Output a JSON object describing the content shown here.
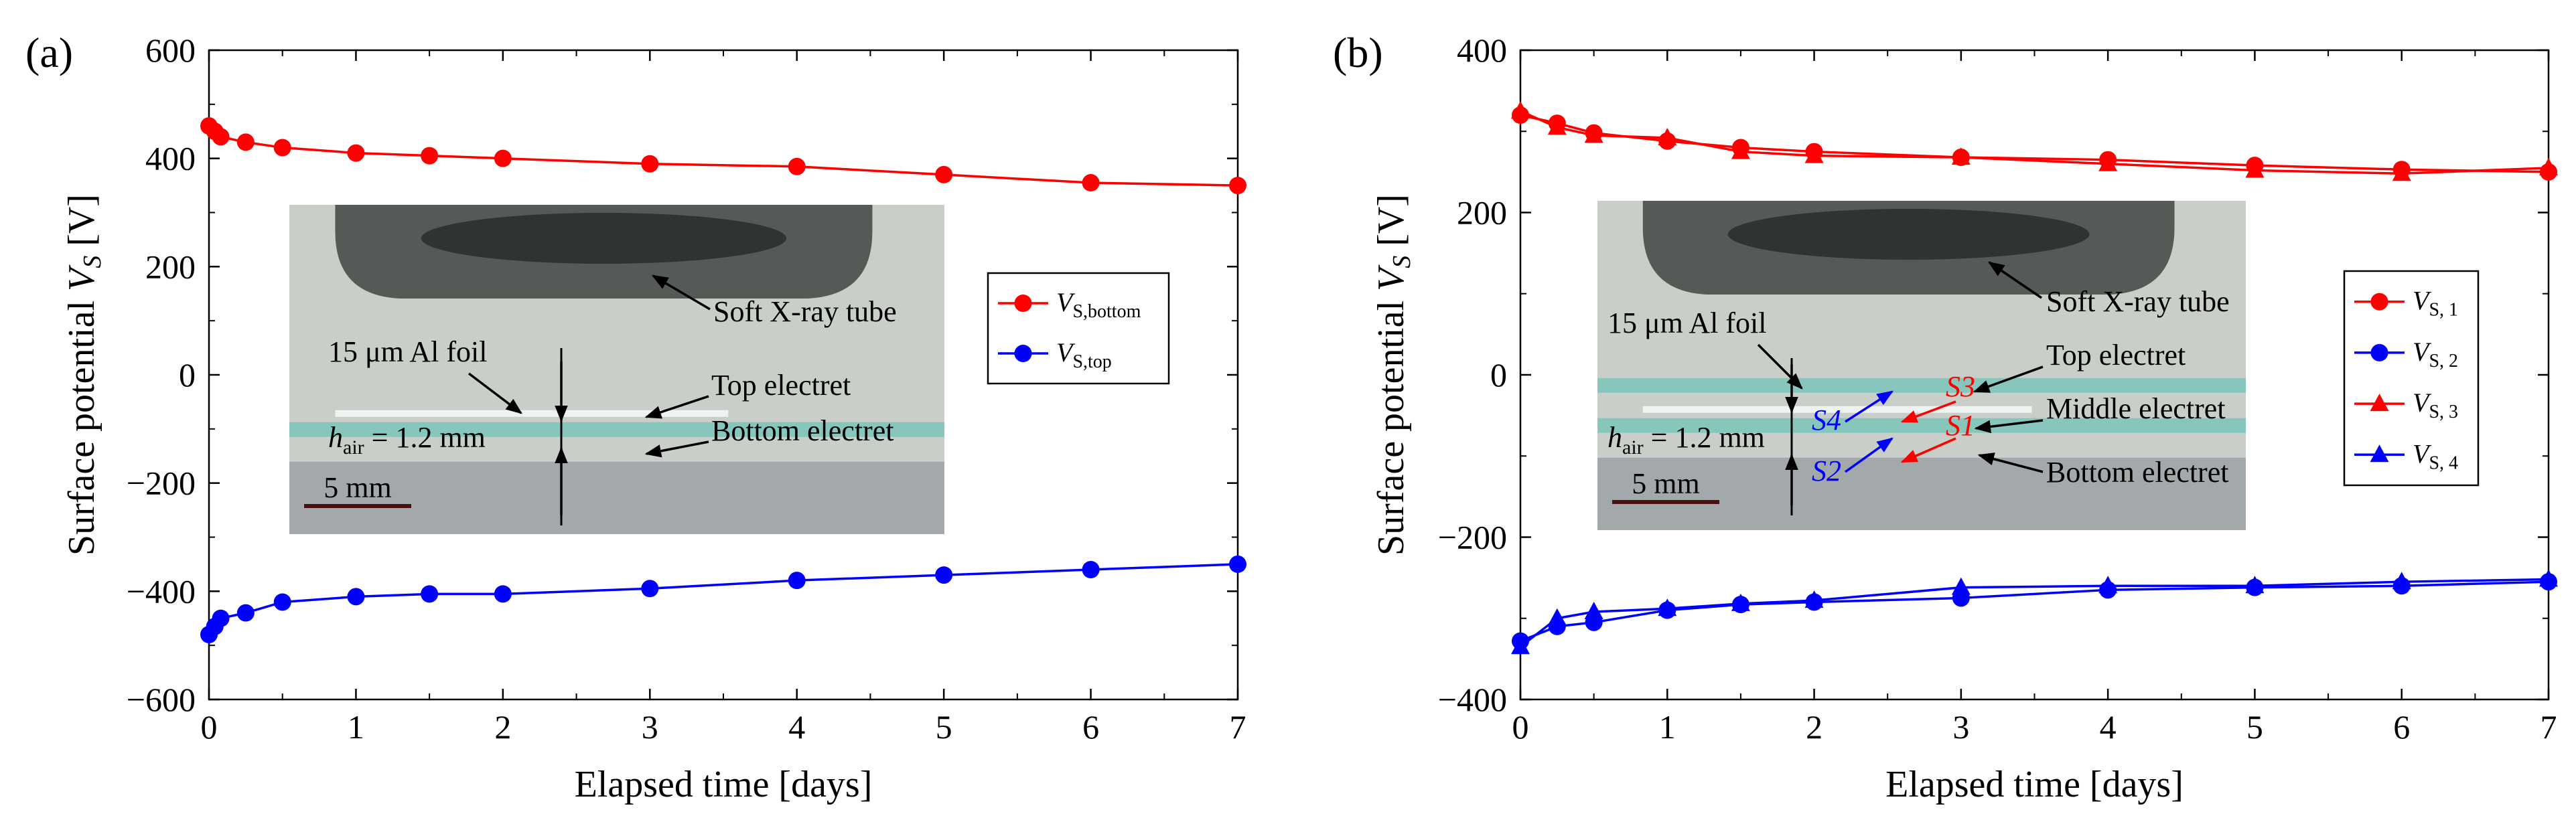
{
  "chart_data": [
    {
      "panel_label": "(a)",
      "type": "line",
      "xlabel": "Elapsed time [days]",
      "ylabel": "Surface potential",
      "ylabel_symbol": "V",
      "ylabel_sub": "S",
      "ylabel_unit": "[V]",
      "xlim": [
        0,
        7
      ],
      "ylim": [
        -600,
        600
      ],
      "xticks": [
        0,
        1,
        2,
        3,
        4,
        5,
        6,
        7
      ],
      "yticks": [
        600,
        400,
        200,
        0,
        -200,
        -400,
        -600
      ],
      "ytick_labels": [
        "600",
        "400",
        "200",
        "0",
        "−200",
        "−400",
        "−600"
      ],
      "series": [
        {
          "name": "V",
          "name_sub": "S,bottom",
          "color": "#ff0000",
          "marker": "circle",
          "x": [
            0,
            0.04,
            0.08,
            0.25,
            0.5,
            1,
            1.5,
            2,
            3,
            4,
            5,
            6,
            7
          ],
          "y": [
            460,
            450,
            440,
            430,
            420,
            410,
            405,
            400,
            390,
            385,
            370,
            355,
            350
          ]
        },
        {
          "name": "V",
          "name_sub": "S,top",
          "color": "#0000ff",
          "marker": "circle",
          "x": [
            0,
            0.04,
            0.08,
            0.25,
            0.5,
            1,
            1.5,
            2,
            3,
            4,
            5,
            6,
            7
          ],
          "y": [
            -480,
            -465,
            -450,
            -440,
            -420,
            -410,
            -405,
            -405,
            -395,
            -380,
            -370,
            -360,
            -350
          ]
        }
      ],
      "legend_position": "center-right",
      "inset": {
        "scale_bar": "5 mm",
        "labels": {
          "tube": "Soft X-ray tube",
          "foil": "15 μm Al foil",
          "top": "Top electret",
          "bottom": "Bottom electret",
          "hair_symbol": "h",
          "hair_sub": "air",
          "hair_value": " = 1.2 mm"
        }
      }
    },
    {
      "panel_label": "(b)",
      "type": "line",
      "xlabel": "Elapsed time [days]",
      "ylabel": "Surface potential",
      "ylabel_symbol": "V",
      "ylabel_sub": "S",
      "ylabel_unit": "[V]",
      "xlim": [
        0,
        7
      ],
      "ylim": [
        -400,
        400
      ],
      "xticks": [
        0,
        1,
        2,
        3,
        4,
        5,
        6,
        7
      ],
      "yticks": [
        400,
        200,
        0,
        -200,
        -400
      ],
      "ytick_labels": [
        "400",
        "200",
        "0",
        "−200",
        "−400"
      ],
      "series": [
        {
          "name": "V",
          "name_sub": "S, 1",
          "color": "#ff0000",
          "marker": "circle",
          "x": [
            0,
            0.25,
            0.5,
            1,
            1.5,
            2,
            3,
            4,
            5,
            6,
            7
          ],
          "y": [
            320,
            310,
            298,
            288,
            280,
            275,
            268,
            265,
            258,
            253,
            250
          ]
        },
        {
          "name": "V",
          "name_sub": "S, 2",
          "color": "#0000ff",
          "marker": "circle",
          "x": [
            0,
            0.25,
            0.5,
            1,
            1.5,
            2,
            3,
            4,
            5,
            6,
            7
          ],
          "y": [
            -328,
            -310,
            -305,
            -290,
            -283,
            -280,
            -275,
            -265,
            -262,
            -260,
            -255
          ]
        },
        {
          "name": "V",
          "name_sub": "S, 3",
          "color": "#ff0000",
          "marker": "triangle",
          "x": [
            0,
            0.25,
            0.5,
            1,
            1.5,
            2,
            3,
            4,
            5,
            6,
            7
          ],
          "y": [
            325,
            305,
            295,
            292,
            275,
            270,
            268,
            260,
            252,
            248,
            255
          ]
        },
        {
          "name": "V",
          "name_sub": "S, 4",
          "color": "#0000ff",
          "marker": "triangle",
          "x": [
            0,
            0.25,
            0.5,
            1,
            1.5,
            2,
            3,
            4,
            5,
            6,
            7
          ],
          "y": [
            -335,
            -300,
            -292,
            -288,
            -282,
            -278,
            -262,
            -260,
            -260,
            -255,
            -252
          ]
        }
      ],
      "legend_position": "center-right",
      "inset": {
        "scale_bar": "5 mm",
        "labels": {
          "tube": "Soft X-ray tube",
          "foil": "15 μm Al foil",
          "top": "Top electret",
          "middle": "Middle electret",
          "bottom": "Bottom electret",
          "hair_symbol": "h",
          "hair_sub": "air",
          "hair_value": " = 1.2 mm",
          "s1": "S1",
          "s2": "S2",
          "s3": "S3",
          "s4": "S4"
        }
      }
    }
  ]
}
